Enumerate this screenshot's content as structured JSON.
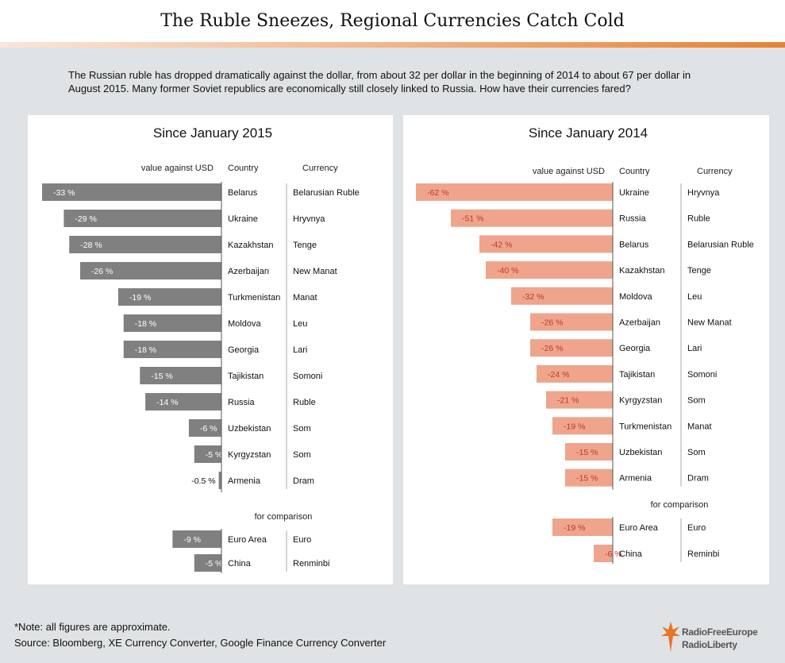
{
  "title": "The Ruble Sneezes, Regional Currencies Catch Cold",
  "intro": "The Russian ruble has dropped dramatically against the dollar, from about 32 per dollar in the beginning of 2014 to about 67 per dollar in August 2015. Many former Soviet republics are economically still closely linked to Russia. How have their currencies fared?",
  "note": "*Note: all figures are approximate.",
  "source": "Source: Bloomberg, XE Currency Converter, Google Finance Currency Converter",
  "logo": {
    "line1": "RadioFreeEurope",
    "line2": "RadioLiberty",
    "icon": "rfe-rl-torch-icon"
  },
  "chart_data": [
    {
      "type": "bar",
      "title": "Since January 2015",
      "xlabel": "value against USD",
      "col_country": "Country",
      "col_currency": "Currency",
      "comparison_label": "for comparison",
      "xlim": [
        -33,
        0
      ],
      "bar_color": "#808080",
      "label_color_inside": "#ffffff",
      "rows": [
        {
          "country": "Belarus",
          "currency": "Belarusian Ruble",
          "value": -33,
          "label": "-33 %"
        },
        {
          "country": "Ukraine",
          "currency": "Hryvnya",
          "value": -29,
          "label": "-29 %"
        },
        {
          "country": "Kazakhstan",
          "currency": "Tenge",
          "value": -28,
          "label": "-28 %"
        },
        {
          "country": "Azerbaijan",
          "currency": "New Manat",
          "value": -26,
          "label": "-26 %"
        },
        {
          "country": "Turkmenistan",
          "currency": "Manat",
          "value": -19,
          "label": "-19 %"
        },
        {
          "country": "Moldova",
          "currency": "Leu",
          "value": -18,
          "label": "-18 %"
        },
        {
          "country": "Georgia",
          "currency": "Lari",
          "value": -18,
          "label": "-18 %"
        },
        {
          "country": "Tajikistan",
          "currency": "Somoni",
          "value": -15,
          "label": "-15 %"
        },
        {
          "country": "Russia",
          "currency": "Ruble",
          "value": -14,
          "label": "-14 %"
        },
        {
          "country": "Uzbekistan",
          "currency": "Som",
          "value": -6,
          "label": "-6 %"
        },
        {
          "country": "Kyrgyzstan",
          "currency": "Som",
          "value": -5,
          "label": "-5 %"
        },
        {
          "country": "Armenia",
          "currency": "Dram",
          "value": -0.5,
          "label": "-0.5 %"
        }
      ],
      "comparison": [
        {
          "country": "Euro Area",
          "currency": "Euro",
          "value": -9,
          "label": "-9 %"
        },
        {
          "country": "China",
          "currency": "Renminbi",
          "value": -5,
          "label": "-5 %"
        }
      ]
    },
    {
      "type": "bar",
      "title": "Since January 2014",
      "xlabel": "value against USD",
      "col_country": "Country",
      "col_currency": "Currency",
      "comparison_label": "for comparison",
      "xlim": [
        -62,
        0
      ],
      "bar_color": "#eea58c",
      "label_color_inside": "#c0392b",
      "rows": [
        {
          "country": "Ukraine",
          "currency": "Hryvnya",
          "value": -62,
          "label": "-62 %"
        },
        {
          "country": "Russia",
          "currency": "Ruble",
          "value": -51,
          "label": "-51 %"
        },
        {
          "country": "Belarus",
          "currency": "Belarusian Ruble",
          "value": -42,
          "label": "-42 %"
        },
        {
          "country": "Kazakhstan",
          "currency": "Tenge",
          "value": -40,
          "label": "-40 %"
        },
        {
          "country": "Moldova",
          "currency": "Leu",
          "value": -32,
          "label": "-32 %"
        },
        {
          "country": "Azerbaijan",
          "currency": "New Manat",
          "value": -26,
          "label": "-26 %"
        },
        {
          "country": "Georgia",
          "currency": "Lari",
          "value": -26,
          "label": "-26 %"
        },
        {
          "country": "Tajikistan",
          "currency": "Somoni",
          "value": -24,
          "label": "-24 %"
        },
        {
          "country": "Kyrgyzstan",
          "currency": "Som",
          "value": -21,
          "label": "-21 %"
        },
        {
          "country": "Turkmenistan",
          "currency": "Manat",
          "value": -19,
          "label": "-19 %"
        },
        {
          "country": "Uzbekistan",
          "currency": "Som",
          "value": -15,
          "label": "-15 %"
        },
        {
          "country": "Armenia",
          "currency": "Dram",
          "value": -15,
          "label": "-15 %"
        }
      ],
      "comparison": [
        {
          "country": "Euro Area",
          "currency": "Euro",
          "value": -19,
          "label": "-19 %"
        },
        {
          "country": "China",
          "currency": "Reminbi",
          "value": -6,
          "label": "-6 %"
        }
      ]
    }
  ]
}
